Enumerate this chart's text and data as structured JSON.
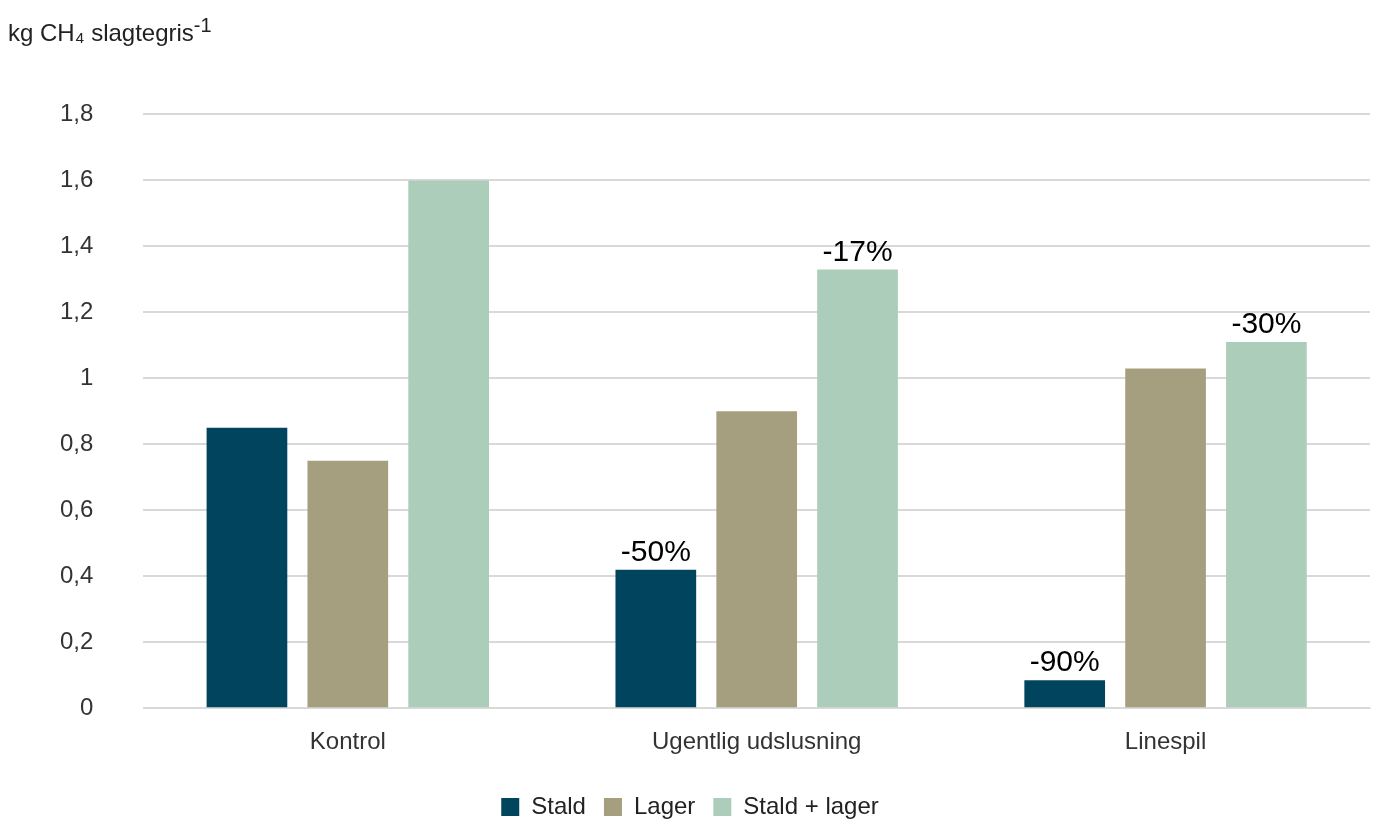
{
  "chart_data": {
    "type": "bar",
    "ylabel": "kg CH₄ slagtegris$^{-1}$",
    "categories": [
      "Kontrol",
      "Ugentlig udslusning",
      "Linespil"
    ],
    "series": [
      {
        "name": "Stald",
        "color": "#00445e",
        "values": [
          0.85,
          0.42,
          0.085
        ]
      },
      {
        "name": "Lager",
        "color": "#a59f80",
        "values": [
          0.75,
          0.9,
          1.03
        ]
      },
      {
        "name": "Stald + lager",
        "color": "#abcdb9",
        "values": [
          1.6,
          1.33,
          1.11
        ]
      }
    ],
    "annotations": [
      "-50%",
      "-90%",
      "-17%",
      "-30%"
    ],
    "ylim": [
      0,
      1.8
    ],
    "yticks": [
      0,
      {
        "value": 0.2,
        "label": "0,2"
      },
      {
        "value": 0.4,
        "label": "0,4"
      },
      {
        "value": 0.6,
        "label": "0,6"
      },
      {
        "value": 0.8,
        "label": "0,8"
      },
      1,
      {
        "value": 1.2,
        "label": "1,2"
      },
      {
        "value": 1.4,
        "label": "1,4"
      },
      {
        "value": 1.6,
        "label": "1,6"
      },
      {
        "value": 1.8,
        "label": "1,8"
      }
    ],
    "grid": "y",
    "legend": "bottom"
  }
}
